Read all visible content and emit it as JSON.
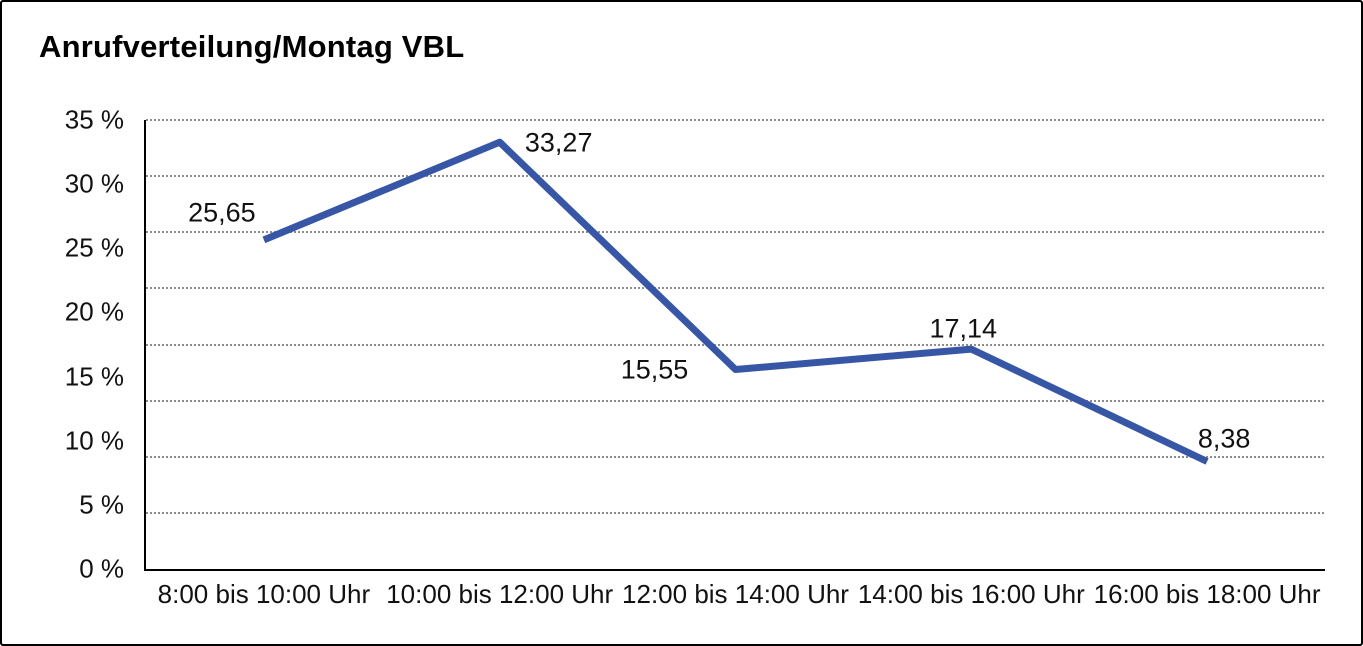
{
  "title": "Anrufverteilung/Montag VBL",
  "chart_data": {
    "type": "line",
    "title": "Anrufverteilung/Montag VBL",
    "categories": [
      "8:00 bis 10:00 Uhr",
      "10:00 bis 12:00 Uhr",
      "12:00 bis 14:00 Uhr",
      "14:00 bis 16:00 Uhr",
      "16:00 bis 18:00 Uhr"
    ],
    "values": [
      25.65,
      33.27,
      15.55,
      17.14,
      8.38
    ],
    "point_labels": [
      "25,65",
      "33,27",
      "15,55",
      "17,14",
      "8,38"
    ],
    "series_name": "Anrufverteilung Montag VBL",
    "xlabel": "",
    "ylabel": "",
    "ylim": [
      0,
      35
    ],
    "ytick_values": [
      35,
      30,
      25,
      20,
      15,
      10,
      5,
      0
    ],
    "ytick_labels": [
      "35 %",
      "30 %",
      "25 %",
      "20 %",
      "15 %",
      "10 %",
      "5 %",
      "0 %"
    ],
    "grid": "horizontal dotted, 8 equal divisions",
    "legend": "none",
    "line_color": "#3757a6",
    "text_color": "#111111",
    "axis_color": "#000000"
  }
}
